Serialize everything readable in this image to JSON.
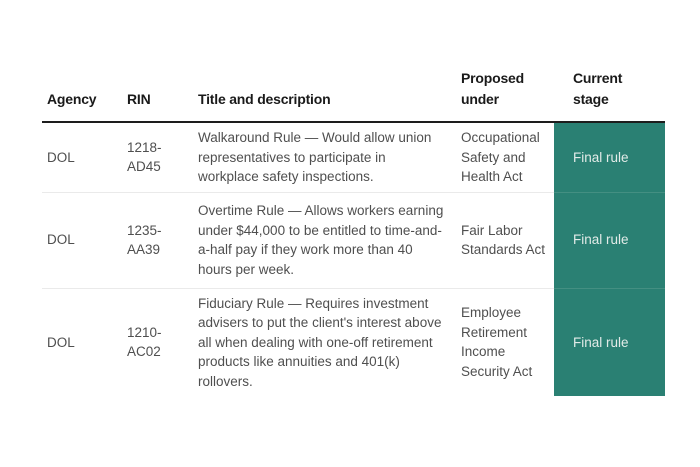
{
  "chart_data": {
    "type": "table",
    "columns": [
      "Agency",
      "RIN",
      "Title and description",
      "Proposed under",
      "Current stage"
    ],
    "rows": [
      [
        "DOL",
        "1218-AD45",
        "Walkaround Rule — Would allow union representatives to participate in workplace safety inspections.",
        "Occupational Safety and Health Act",
        "Final rule"
      ],
      [
        "DOL",
        "1235-AA39",
        "Overtime Rule — Allows workers earning under $44,000 to be entitled to time-and-a-half pay if they work more than 40 hours per week.",
        "Fair Labor Standards Act",
        "Final rule"
      ],
      [
        "DOL",
        "1210-AC02",
        "Fiduciary Rule — Requires investment advisers to put the client's interest above all when dealing with one-off retirement products like annuities and 401(k) rollovers.",
        "Employee Retirement Income Security Act",
        "Final rule"
      ]
    ],
    "layout": {
      "grid": "horizontal row separators only",
      "stage_column_style": "solid teal block spanning all body rows"
    }
  },
  "colors": {
    "stage_background": "#2a8073",
    "stage_text": "#e2ebe8",
    "stage_row_separator": "#448f82",
    "header_text": "#1a1a1a",
    "header_rule": "#1d1d1d",
    "body_text": "#4f4f4f",
    "row_separator": "#eaeaea",
    "page_background": "#ffffff"
  }
}
